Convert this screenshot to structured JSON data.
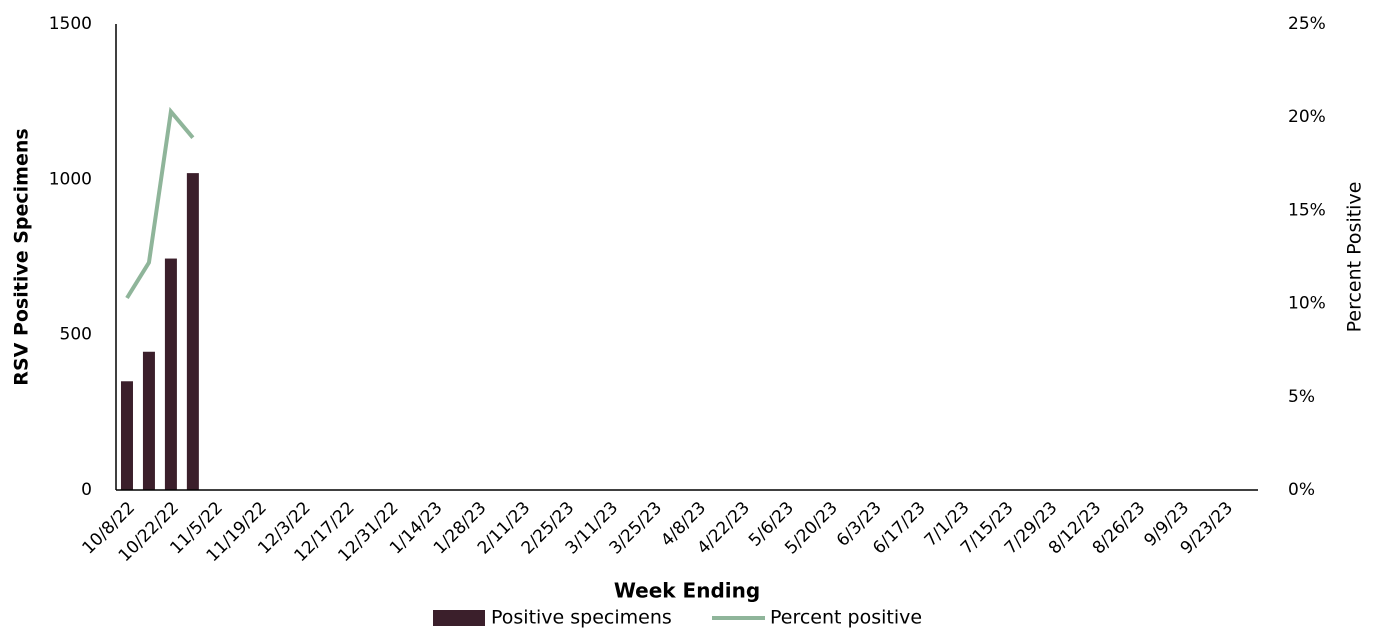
{
  "chart_data": {
    "type": "bar",
    "x_label": "Week Ending",
    "y_label": "RSV Positive Specimens",
    "y2_label": "Percent Positive",
    "categories": [
      "10/8/22",
      null,
      "10/22/22",
      null,
      "11/5/22",
      null,
      "11/19/22",
      null,
      "12/3/22",
      null,
      "12/17/22",
      null,
      "12/31/22",
      null,
      "1/14/23",
      null,
      "1/28/23",
      null,
      "2/11/23",
      null,
      "2/25/23",
      null,
      "3/11/23",
      null,
      "3/25/23",
      null,
      "4/8/23",
      null,
      "4/22/23",
      null,
      "5/6/23",
      null,
      "5/20/23",
      null,
      "6/3/23",
      null,
      "6/17/23",
      null,
      "7/1/23",
      null,
      "7/15/23",
      null,
      "7/29/23",
      null,
      "8/12/23",
      null,
      "8/26/23",
      null,
      "9/9/23",
      null,
      "9/23/23",
      null
    ],
    "series": [
      {
        "name": "Positive specimens",
        "type": "bar",
        "color": "#3b1f2b",
        "values": [
          350,
          445,
          745,
          1020,
          null,
          null,
          null,
          null,
          null,
          null,
          null,
          null,
          null,
          null,
          null,
          null,
          null,
          null,
          null,
          null,
          null,
          null,
          null,
          null,
          null,
          null,
          null,
          null,
          null,
          null,
          null,
          null,
          null,
          null,
          null,
          null,
          null,
          null,
          null,
          null,
          null,
          null,
          null,
          null,
          null,
          null,
          null,
          null,
          null,
          null,
          null,
          null
        ]
      },
      {
        "name": "Percent positive",
        "type": "line",
        "axis": "y2",
        "color": "#8fb59a",
        "values": [
          10.3,
          12.2,
          20.3,
          18.9,
          null,
          null,
          null,
          null,
          null,
          null,
          null,
          null,
          null,
          null,
          null,
          null,
          null,
          null,
          null,
          null,
          null,
          null,
          null,
          null,
          null,
          null,
          null,
          null,
          null,
          null,
          null,
          null,
          null,
          null,
          null,
          null,
          null,
          null,
          null,
          null,
          null,
          null,
          null,
          null,
          null,
          null,
          null,
          null,
          null,
          null,
          null,
          null
        ]
      }
    ],
    "ylim": [
      0,
      1500
    ],
    "yticks": [
      0,
      500,
      1000,
      1500
    ],
    "y2lim": [
      0,
      25
    ],
    "y2ticks": [
      {
        "value": 0,
        "label": "0%"
      },
      {
        "value": 5,
        "label": "5%"
      },
      {
        "value": 10,
        "label": "10%"
      },
      {
        "value": 15,
        "label": "15%"
      },
      {
        "value": 20,
        "label": "20%"
      },
      {
        "value": 25,
        "label": "25%"
      }
    ],
    "grid": false
  }
}
